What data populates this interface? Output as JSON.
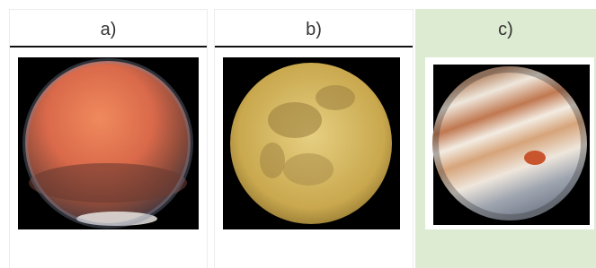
{
  "options": [
    {
      "label": "a)"
    },
    {
      "label": "b)"
    },
    {
      "label": "c)"
    }
  ],
  "selected": 2
}
